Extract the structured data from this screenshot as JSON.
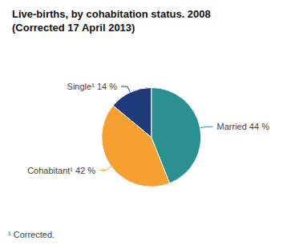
{
  "chart_data": {
    "type": "pie",
    "title": "Live-births, by cohabitation status. 2008",
    "subtitle": "(Corrected 17 April 2013)",
    "annotations": [
      "¹ Corrected."
    ],
    "categories": [
      "Married 44 %",
      "Cohabitant¹ 42 %",
      "Single¹ 14 %"
    ],
    "values": [
      44,
      42,
      14
    ],
    "colors": [
      "#2A9090",
      "#F5A030",
      "#1F3A7A"
    ]
  }
}
